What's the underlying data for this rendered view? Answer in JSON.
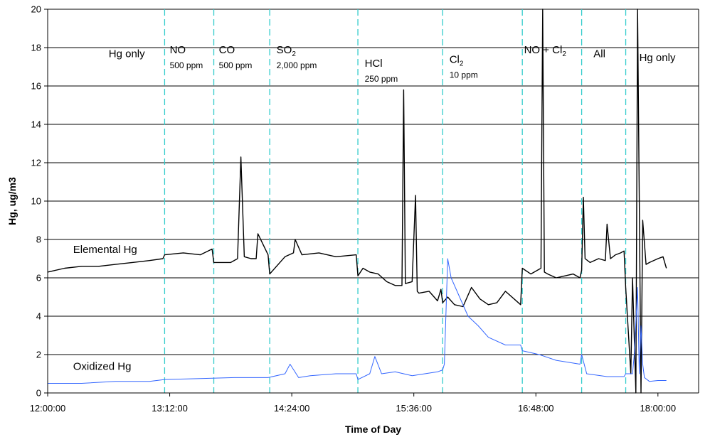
{
  "chart_data": {
    "type": "line",
    "xlabel": "Time of Day",
    "ylabel": "Hg, ug/m3",
    "xlim": [
      "12:00:00",
      "18:24:00"
    ],
    "ylim": [
      0,
      20
    ],
    "x_ticks": [
      "12:00:00",
      "13:12:00",
      "14:24:00",
      "15:36:00",
      "16:48:00",
      "18:00:00"
    ],
    "y_ticks": [
      "0",
      "2",
      "4",
      "6",
      "8",
      "10",
      "12",
      "14",
      "16",
      "18",
      "20"
    ],
    "grid": "horizontal",
    "colors": {
      "elemental": "#000000",
      "oxidized": "#3366ff",
      "boundary": "#33cccc",
      "grid": "#000000"
    },
    "phase_boundaries": [
      "13:09:00",
      "13:38:00",
      "14:11:00",
      "15:03:00",
      "15:53:00",
      "16:40:00",
      "17:15:00",
      "17:41:00"
    ],
    "phases": [
      {
        "parts": [
          {
            "t": "Hg only"
          }
        ],
        "sub": "",
        "x": "12:36:00",
        "y": 17.5
      },
      {
        "parts": [
          {
            "t": "NO"
          }
        ],
        "sub": "500 ppm",
        "x": "13:12:00",
        "y": 17.7
      },
      {
        "parts": [
          {
            "t": "CO"
          }
        ],
        "sub": "500 ppm",
        "x": "13:41:00",
        "y": 17.7
      },
      {
        "parts": [
          {
            "t": "SO"
          },
          {
            "t": "2",
            "subscript": true
          }
        ],
        "sub": "2,000 ppm",
        "x": "14:15:00",
        "y": 17.7
      },
      {
        "parts": [
          {
            "t": "HCl"
          }
        ],
        "sub": "250 ppm",
        "x": "15:07:00",
        "y": 17.0
      },
      {
        "parts": [
          {
            "t": "Cl"
          },
          {
            "t": "2",
            "subscript": true
          }
        ],
        "sub": "10 ppm",
        "x": "15:57:00",
        "y": 17.2
      },
      {
        "parts": [
          {
            "t": "NO + Cl"
          },
          {
            "t": "2",
            "subscript": true
          }
        ],
        "sub": "",
        "x": "16:41:00",
        "y": 17.7
      },
      {
        "parts": [
          {
            "t": "All"
          }
        ],
        "sub": "",
        "x": "17:22:00",
        "y": 17.5
      },
      {
        "parts": [
          {
            "t": "Hg only"
          }
        ],
        "sub": "",
        "x": "17:49:00",
        "y": 17.3
      }
    ],
    "series_labels": [
      {
        "text": "Elemental Hg",
        "x": "12:15:00",
        "y": 7.3
      },
      {
        "text": "Oxidized Hg",
        "x": "12:15:00",
        "y": 1.2
      }
    ],
    "series": [
      {
        "name": "Elemental Hg",
        "x": [
          "12:00:00",
          "12:10:00",
          "12:20:00",
          "12:30:00",
          "12:40:00",
          "12:50:00",
          "13:00:00",
          "13:08:00",
          "13:09:00",
          "13:20:00",
          "13:30:00",
          "13:37:00",
          "13:38:00",
          "13:48:00",
          "13:52:00",
          "13:54:00",
          "13:56:00",
          "14:00:00",
          "14:03:00",
          "14:04:00",
          "14:10:00",
          "14:11:00",
          "14:20:00",
          "14:25:00",
          "14:26:00",
          "14:30:00",
          "14:40:00",
          "14:50:00",
          "15:02:00",
          "15:03:00",
          "15:06:00",
          "15:10:00",
          "15:15:00",
          "15:20:00",
          "15:25:00",
          "15:29:00",
          "15:30:00",
          "15:31:00",
          "15:35:00",
          "15:37:00",
          "15:38:00",
          "15:39:00",
          "15:45:00",
          "15:50:00",
          "15:52:00",
          "15:53:00",
          "15:56:00",
          "16:00:00",
          "16:05:00",
          "16:10:00",
          "16:15:00",
          "16:20:00",
          "16:25:00",
          "16:30:00",
          "16:39:00",
          "16:40:00",
          "16:45:00",
          "16:51:00",
          "16:52:00",
          "16:53:00",
          "16:55:00",
          "17:00:00",
          "17:05:00",
          "17:10:00",
          "17:14:00",
          "17:15:00",
          "17:16:00",
          "17:17:00",
          "17:20:00",
          "17:25:00",
          "17:29:00",
          "17:30:00",
          "17:32:00",
          "17:35:00",
          "17:38:00",
          "17:40:00",
          "17:41:00",
          "17:44:00",
          "17:45:00",
          "17:47:00",
          "17:48:00",
          "17:50:00",
          "17:51:00",
          "17:53:00",
          "17:55:00",
          "18:00:00",
          "18:03:00",
          "18:05:00"
        ],
        "values": [
          6.3,
          6.5,
          6.6,
          6.6,
          6.7,
          6.8,
          6.9,
          7.0,
          7.2,
          7.3,
          7.2,
          7.5,
          6.8,
          6.8,
          7.0,
          12.3,
          7.1,
          7.0,
          7.0,
          8.3,
          7.2,
          6.2,
          7.1,
          7.3,
          8.0,
          7.2,
          7.3,
          7.1,
          7.2,
          6.1,
          6.5,
          6.3,
          6.2,
          5.8,
          5.6,
          5.6,
          15.8,
          5.7,
          5.8,
          10.3,
          5.3,
          5.2,
          5.3,
          4.8,
          5.4,
          4.7,
          5.0,
          4.6,
          4.5,
          5.5,
          4.9,
          4.6,
          4.7,
          5.3,
          4.6,
          6.5,
          6.2,
          6.5,
          20.0,
          6.3,
          6.2,
          6.0,
          6.1,
          6.2,
          6.0,
          6.4,
          10.2,
          7.0,
          6.8,
          7.0,
          6.9,
          8.8,
          7.0,
          7.2,
          7.3,
          7.4,
          5.5,
          1.0,
          6.0,
          0.0,
          20.0,
          0.0,
          9.0,
          6.7,
          6.8,
          7.0,
          7.1,
          6.5
        ]
      },
      {
        "name": "Oxidized Hg",
        "x": [
          "12:00:00",
          "12:20:00",
          "12:40:00",
          "13:00:00",
          "13:09:00",
          "13:30:00",
          "13:50:00",
          "14:10:00",
          "14:20:00",
          "14:23:00",
          "14:28:00",
          "14:35:00",
          "14:50:00",
          "15:02:00",
          "15:03:00",
          "15:10:00",
          "15:13:00",
          "15:17:00",
          "15:25:00",
          "15:35:00",
          "15:50:00",
          "15:53:00",
          "15:54:00",
          "15:56:00",
          "15:58:00",
          "16:03:00",
          "16:08:00",
          "16:14:00",
          "16:20:00",
          "16:30:00",
          "16:39:00",
          "16:40:00",
          "16:50:00",
          "17:00:00",
          "17:14:00",
          "17:15:00",
          "17:18:00",
          "17:30:00",
          "17:40:00",
          "17:41:00",
          "17:45:00",
          "17:46:00",
          "17:48:00",
          "17:49:00",
          "17:50:00",
          "17:51:00",
          "17:52:00",
          "17:55:00",
          "18:00:00",
          "18:05:00"
        ],
        "values": [
          0.5,
          0.5,
          0.6,
          0.6,
          0.7,
          0.75,
          0.8,
          0.8,
          1.0,
          1.5,
          0.8,
          0.9,
          1.0,
          1.0,
          0.7,
          1.0,
          1.9,
          1.0,
          1.1,
          0.9,
          1.1,
          1.2,
          1.5,
          7.0,
          6.0,
          5.0,
          4.0,
          3.5,
          2.9,
          2.5,
          2.5,
          2.2,
          2.0,
          1.7,
          1.5,
          2.0,
          1.0,
          0.85,
          0.85,
          1.0,
          1.0,
          2.0,
          5.5,
          1.0,
          3.5,
          1.5,
          0.8,
          0.6,
          0.65,
          0.65
        ]
      }
    ]
  }
}
